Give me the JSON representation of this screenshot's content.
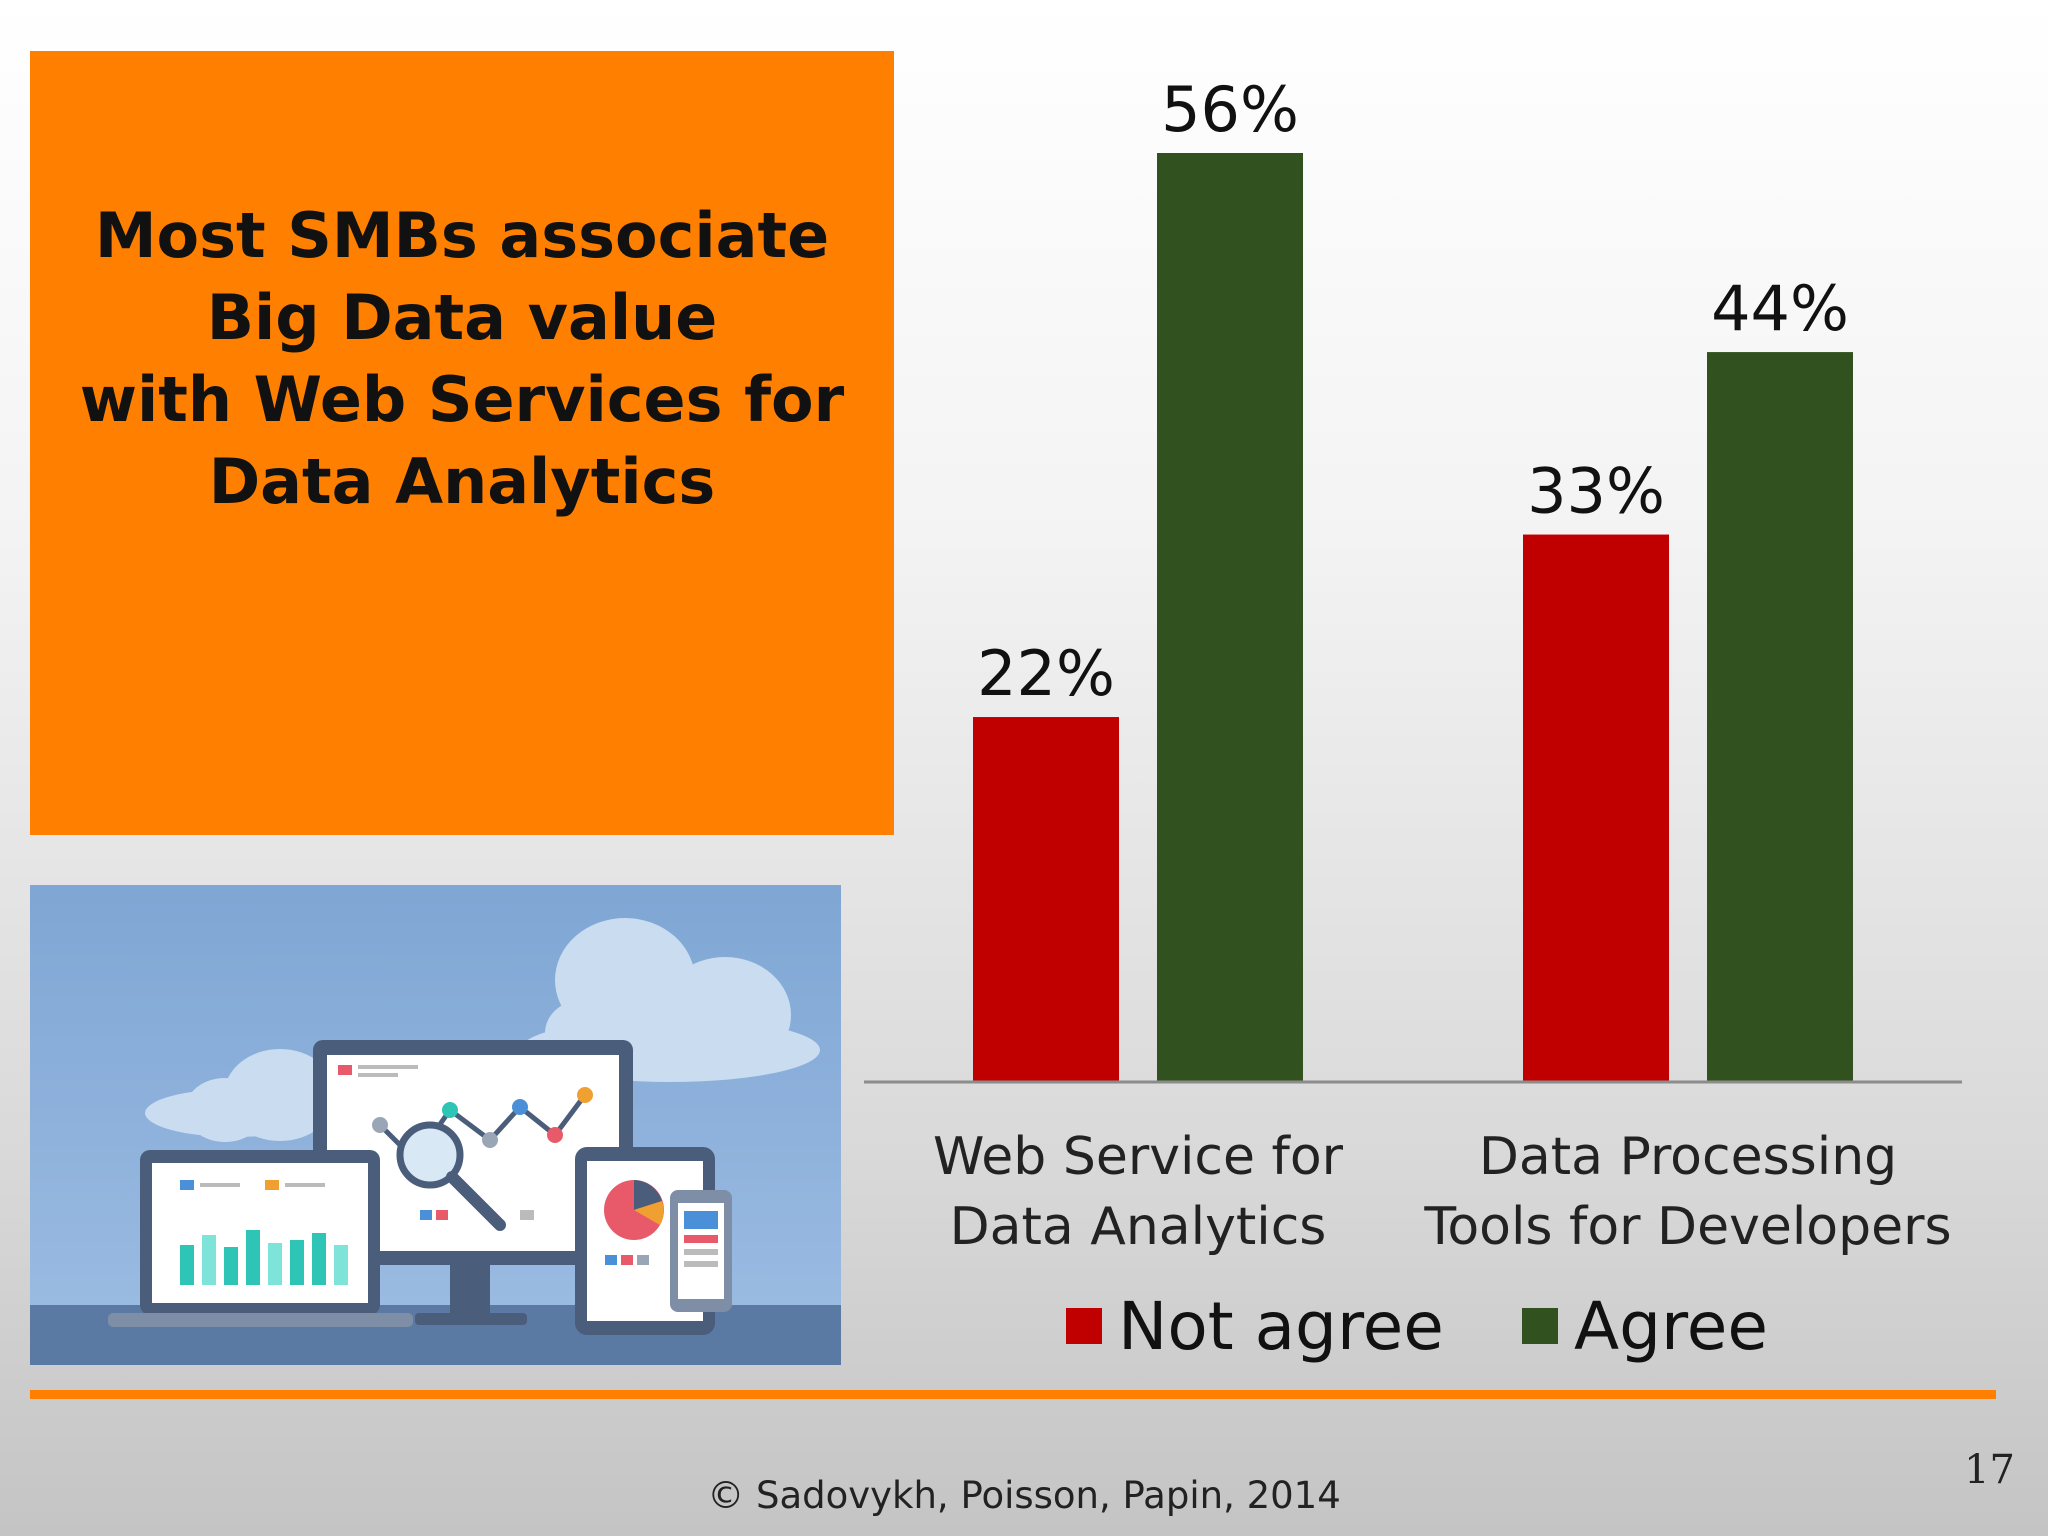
{
  "headline": {
    "lines": [
      "Most SMBs associate",
      "Big Data value",
      "with Web Services for",
      "Data Analytics"
    ]
  },
  "colors": {
    "accent": "#ff8000",
    "not_agree": "#c00000",
    "agree": "#31521f",
    "axis": "#8c8c8c"
  },
  "chart_data": {
    "type": "bar",
    "categories": [
      [
        "Web Service for",
        "Data Analytics"
      ],
      [
        "Data Processing",
        "Tools for Developers"
      ]
    ],
    "series": [
      {
        "name": "Not agree",
        "values": [
          22,
          33
        ],
        "color": "#c00000"
      },
      {
        "name": "Agree",
        "values": [
          56,
          44
        ],
        "color": "#31521f"
      }
    ],
    "value_suffix": "%",
    "ylim": [
      0,
      60
    ],
    "grid": false,
    "legend": "bottom"
  },
  "footer": {
    "copyright": "© Sadovykh, Poisson, Papin, 2014",
    "slide_number": "17"
  }
}
